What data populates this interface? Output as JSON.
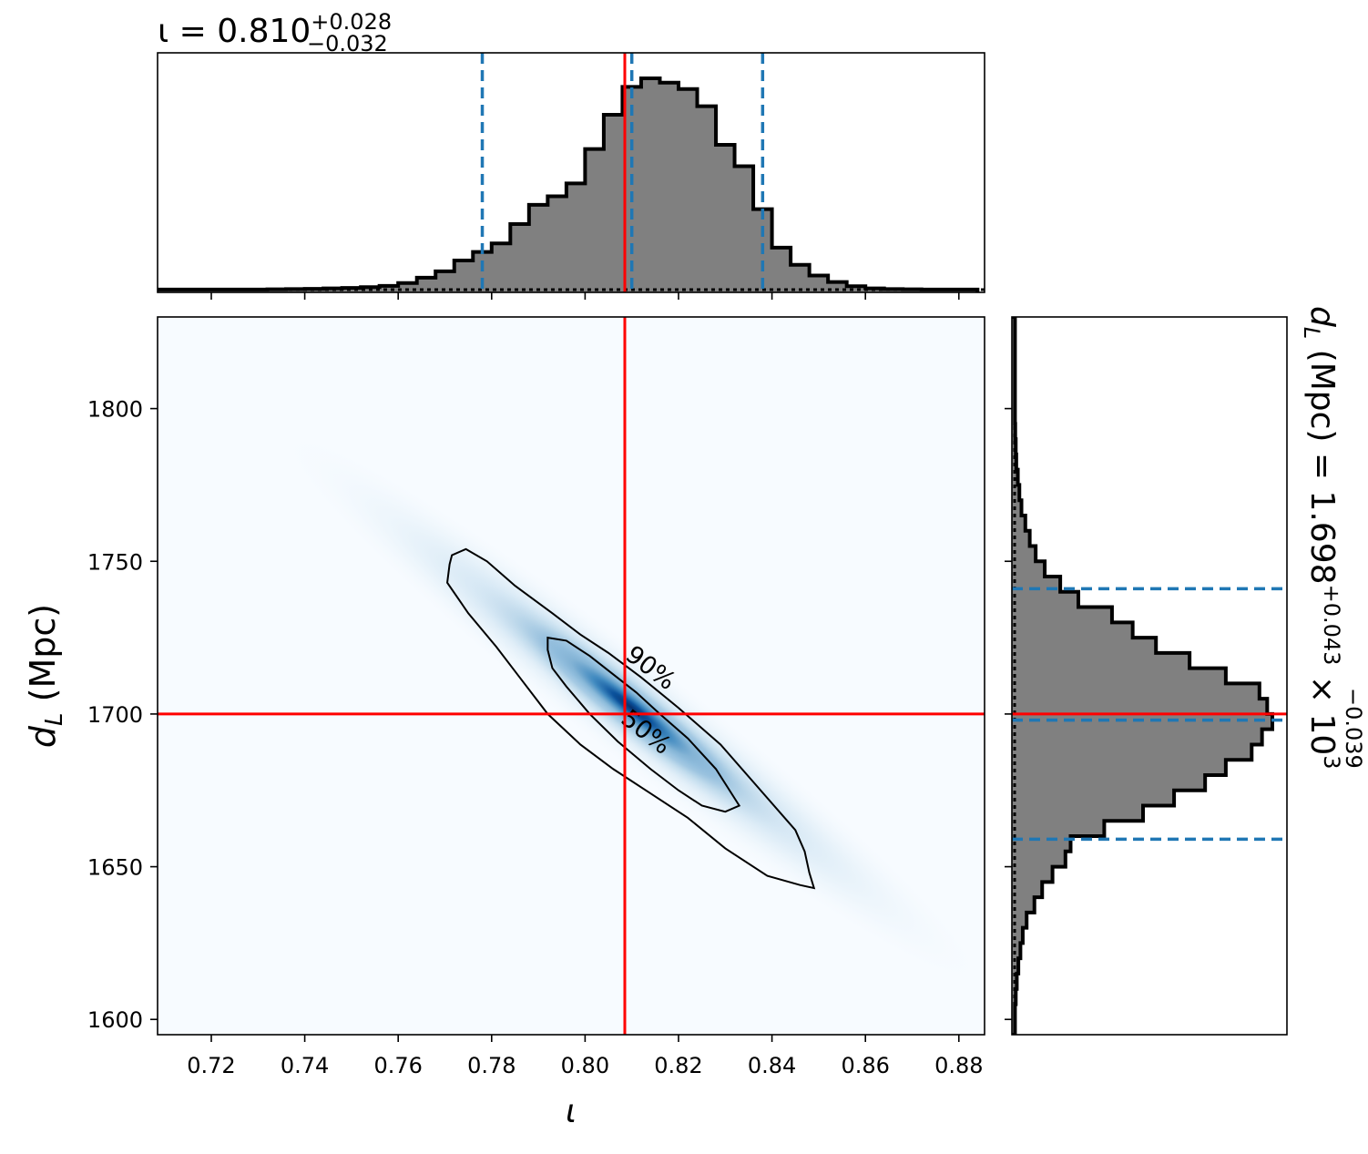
{
  "chart_data": [
    {
      "panel": "top-marginal",
      "type": "histogram",
      "title_symbol": "ι = 0.810",
      "title_sup": "+0.028",
      "title_sub": "−0.032",
      "bin_edges": [
        0.708,
        0.712,
        0.716,
        0.72,
        0.724,
        0.728,
        0.732,
        0.736,
        0.74,
        0.744,
        0.748,
        0.752,
        0.756,
        0.76,
        0.764,
        0.768,
        0.772,
        0.776,
        0.78,
        0.784,
        0.788,
        0.792,
        0.796,
        0.8,
        0.804,
        0.808,
        0.812,
        0.816,
        0.82,
        0.824,
        0.828,
        0.832,
        0.836,
        0.84,
        0.844,
        0.848,
        0.852,
        0.856,
        0.86,
        0.864,
        0.868,
        0.872,
        0.876,
        0.88,
        0.884
      ],
      "values": [
        0.005,
        0.005,
        0.005,
        0.005,
        0.005,
        0.005,
        0.006,
        0.007,
        0.008,
        0.01,
        0.012,
        0.016,
        0.022,
        0.035,
        0.06,
        0.09,
        0.14,
        0.18,
        0.22,
        0.31,
        0.4,
        0.44,
        0.5,
        0.66,
        0.82,
        0.95,
        0.99,
        0.97,
        0.94,
        0.86,
        0.68,
        0.58,
        0.38,
        0.2,
        0.12,
        0.07,
        0.04,
        0.02,
        0.01,
        0.007,
        0.006,
        0.005,
        0.005,
        0.005
      ],
      "truth": 0.8085,
      "median": 0.81,
      "interval": [
        0.778,
        0.838
      ],
      "xlim": [
        0.7085,
        0.8855
      ]
    },
    {
      "panel": "joint",
      "type": "heatmap",
      "xlabel": "ι",
      "ylabel": "d_L (Mpc)",
      "ylabel_main": "d",
      "ylabel_sub": "L",
      "ylabel_unit": " (Mpc)",
      "xlim": [
        0.7085,
        0.8855
      ],
      "ylim": [
        1595,
        1830
      ],
      "xticks": [
        "0.72",
        "0.74",
        "0.76",
        "0.78",
        "0.80",
        "0.82",
        "0.84",
        "0.86",
        "0.88"
      ],
      "yticks": [
        "1600",
        "1650",
        "1700",
        "1750",
        "1800"
      ],
      "truth_x": 0.8085,
      "truth_y": 1700,
      "contour_labels": [
        "90%",
        "50%"
      ],
      "contour_90": [
        [
          0.7715,
          1752
        ],
        [
          0.7745,
          1754
        ],
        [
          0.779,
          1750
        ],
        [
          0.785,
          1742
        ],
        [
          0.793,
          1733
        ],
        [
          0.799,
          1726
        ],
        [
          0.805,
          1720
        ],
        [
          0.812,
          1712
        ],
        [
          0.82,
          1702
        ],
        [
          0.829,
          1690
        ],
        [
          0.837,
          1676
        ],
        [
          0.845,
          1662
        ],
        [
          0.847,
          1655
        ],
        [
          0.848,
          1648
        ],
        [
          0.849,
          1643
        ],
        [
          0.846,
          1644
        ],
        [
          0.839,
          1647
        ],
        [
          0.83,
          1656
        ],
        [
          0.822,
          1666
        ],
        [
          0.814,
          1674
        ],
        [
          0.806,
          1682
        ],
        [
          0.799,
          1690
        ],
        [
          0.792,
          1700
        ],
        [
          0.786,
          1712
        ],
        [
          0.781,
          1722
        ],
        [
          0.775,
          1733
        ],
        [
          0.7705,
          1743
        ],
        [
          0.771,
          1749
        ]
      ],
      "contour_50": [
        [
          0.792,
          1725
        ],
        [
          0.796,
          1724
        ],
        [
          0.801,
          1719
        ],
        [
          0.806,
          1713
        ],
        [
          0.811,
          1707
        ],
        [
          0.816,
          1700
        ],
        [
          0.822,
          1692
        ],
        [
          0.828,
          1682
        ],
        [
          0.833,
          1670
        ],
        [
          0.83,
          1668
        ],
        [
          0.825,
          1670
        ],
        [
          0.82,
          1675
        ],
        [
          0.814,
          1682
        ],
        [
          0.807,
          1691
        ],
        [
          0.801,
          1700
        ],
        [
          0.796,
          1709
        ],
        [
          0.793,
          1715
        ],
        [
          0.792,
          1721
        ]
      ],
      "density_center": [
        0.81,
        1702
      ],
      "density_color": "#08519c",
      "background_color": "#f7fbff"
    },
    {
      "panel": "right-marginal",
      "type": "histogram",
      "orientation": "horizontal",
      "title_main": "d",
      "title_sub": "L",
      "title_rest": " (Mpc) = 1.698",
      "title_sup": "+0.043",
      "title_low": "−0.039",
      "title_mult": " × 10",
      "title_exp": "3",
      "bin_edges": [
        1595,
        1600,
        1605,
        1610,
        1615,
        1620,
        1625,
        1630,
        1635,
        1640,
        1645,
        1650,
        1655,
        1660,
        1665,
        1670,
        1675,
        1680,
        1685,
        1690,
        1695,
        1700,
        1705,
        1710,
        1715,
        1720,
        1725,
        1730,
        1735,
        1740,
        1745,
        1750,
        1755,
        1760,
        1765,
        1770,
        1775,
        1780,
        1785,
        1790,
        1795,
        1800,
        1805,
        1810,
        1815,
        1820,
        1825,
        1830
      ],
      "values": [
        0.005,
        0.005,
        0.008,
        0.012,
        0.018,
        0.026,
        0.035,
        0.05,
        0.08,
        0.11,
        0.15,
        0.2,
        0.22,
        0.35,
        0.5,
        0.62,
        0.74,
        0.82,
        0.92,
        0.96,
        1.0,
        0.98,
        0.95,
        0.82,
        0.68,
        0.55,
        0.46,
        0.38,
        0.25,
        0.18,
        0.12,
        0.085,
        0.062,
        0.045,
        0.03,
        0.022,
        0.016,
        0.01,
        0.008,
        0.006,
        0.005,
        0.005,
        0.005,
        0.005,
        0.005,
        0.005,
        0.005
      ],
      "truth": 1700,
      "median": 1698,
      "interval": [
        1659,
        1741
      ],
      "ylim": [
        1595,
        1830
      ]
    }
  ],
  "colors": {
    "hist_fill": "#808080",
    "hist_edge": "#000000",
    "quantile_line": "#1f77b4",
    "truth_line": "#ff0000"
  }
}
